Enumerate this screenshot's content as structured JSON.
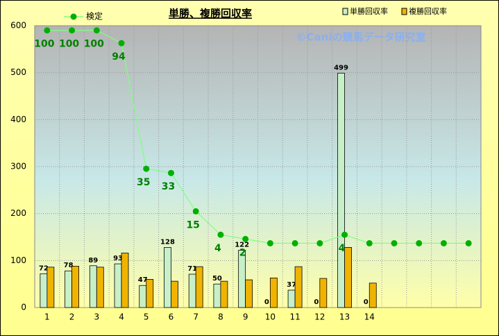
{
  "chart_data": {
    "type": "bar",
    "title": "単勝、複勝回収率",
    "annotation": "©Caniの競馬データ研究室",
    "categories": [
      "1",
      "2",
      "3",
      "4",
      "5",
      "6",
      "7",
      "8",
      "9",
      "10",
      "11",
      "12",
      "13",
      "14",
      null,
      null,
      null,
      null
    ],
    "series": [
      {
        "name": "単勝回収率",
        "color": "#c8f0c8",
        "axis": "y",
        "values": [
          72,
          78,
          89,
          93,
          47,
          128,
          71,
          50,
          122,
          0,
          37,
          0,
          499,
          0,
          null,
          null,
          null,
          null
        ]
      },
      {
        "name": "複勝回収率",
        "color": "#f0b400",
        "axis": "y",
        "values": [
          86,
          88,
          86,
          116,
          60,
          56,
          87,
          56,
          59,
          63,
          87,
          62,
          128,
          52,
          null,
          null,
          null,
          null
        ]
      },
      {
        "name": "検定",
        "color": "#80ff80",
        "type": "line",
        "axis": "y2",
        "values": [
          100,
          100,
          100,
          94,
          35,
          33,
          15,
          4,
          2,
          0,
          0,
          0,
          4,
          0,
          0,
          0,
          0,
          0
        ]
      }
    ],
    "ylim": [
      0,
      600
    ],
    "yticks": [
      0,
      100,
      200,
      300,
      400,
      500,
      600
    ],
    "y2lim": [
      -30.2,
      102.2
    ],
    "grid": true
  }
}
